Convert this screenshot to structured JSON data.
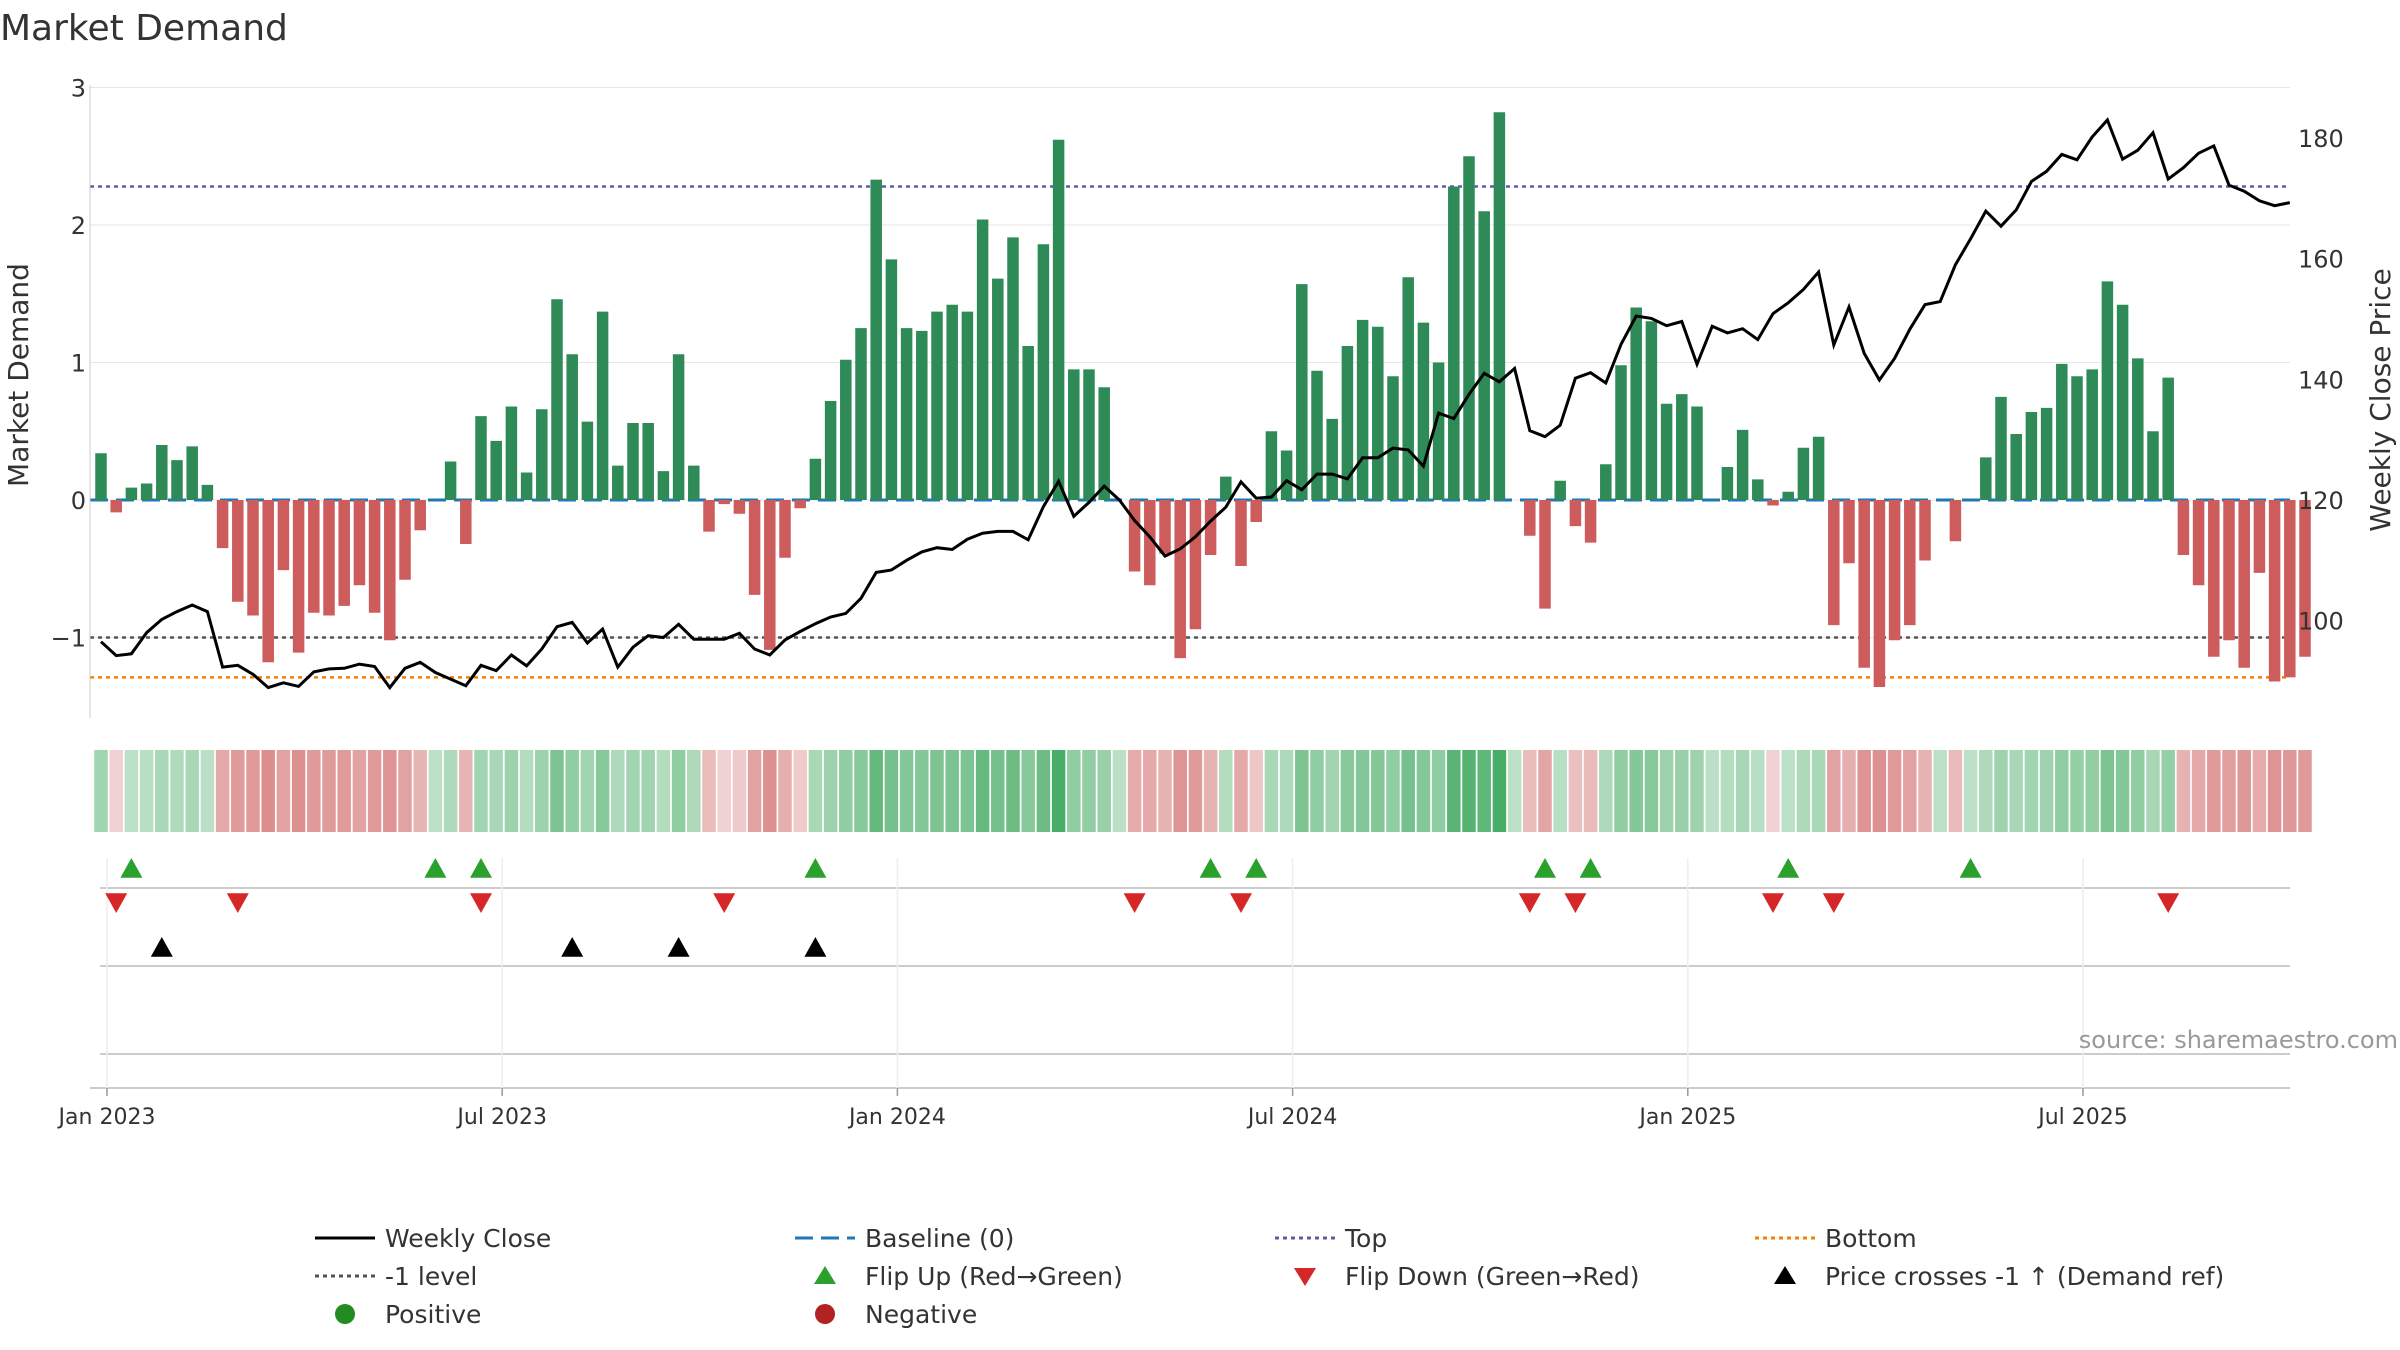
{
  "chart_data": {
    "type": "bar",
    "title": "Market Demand",
    "ylabel": "Market Demand",
    "y2label": "Weekly Close Price",
    "ylim": [
      -1.6,
      3.0
    ],
    "y2lim": [
      82.5,
      188.2
    ],
    "yticks": [
      3,
      2,
      1,
      0,
      -1
    ],
    "y2ticks": [
      180,
      160,
      140,
      120,
      100
    ],
    "source": "source: sharemaestro.com",
    "x_ticks": [
      {
        "week": 1,
        "label": "Jan 2023"
      },
      {
        "week": 27,
        "label": "Jul 2023"
      },
      {
        "week": 53,
        "label": "Jan 2024"
      },
      {
        "week": 79,
        "label": "Jul 2024"
      },
      {
        "week": 105,
        "label": "Jan 2025"
      },
      {
        "week": 131,
        "label": "Jul 2025"
      }
    ],
    "reference_lines": {
      "top": 2.28,
      "bottom": -1.29,
      "minus_one": -1,
      "baseline": 0
    },
    "colors": {
      "positive": "#2e8b57",
      "negative": "#cd5c5c",
      "price": "#000000",
      "baseline": "#1f77b4",
      "top": "#5b5ba8",
      "bottom": "#f08000",
      "minus_one": "#555555",
      "flip_up": "#2ca02c",
      "flip_down": "#d62728",
      "cross": "#000000",
      "dot_positive": "#228b22",
      "dot_negative": "#b22222"
    },
    "demand": [
      0.34,
      -0.09,
      0.09,
      0.12,
      0.4,
      0.29,
      0.39,
      0.11,
      -0.35,
      -0.74,
      -0.84,
      -1.18,
      -0.51,
      -1.11,
      -0.82,
      -0.84,
      -0.77,
      -0.62,
      -0.82,
      -1.02,
      -0.58,
      -0.22,
      0,
      0.28,
      -0.32,
      0.61,
      0.43,
      0.68,
      0.2,
      0.66,
      1.46,
      1.06,
      0.57,
      1.37,
      0.25,
      0.56,
      0.56,
      0.21,
      1.06,
      0.25,
      -0.23,
      -0.03,
      -0.1,
      -0.69,
      -1.09,
      -0.42,
      -0.06,
      0.3,
      0.72,
      1.02,
      1.25,
      2.33,
      1.75,
      1.25,
      1.23,
      1.37,
      1.42,
      1.37,
      2.04,
      1.61,
      1.91,
      1.12,
      1.86,
      2.62,
      0.95,
      0.95,
      0.82,
      0,
      -0.52,
      -0.62,
      -0.39,
      -1.15,
      -0.94,
      -0.4,
      0.17,
      -0.48,
      -0.16,
      0.5,
      0.36,
      1.57,
      0.94,
      0.59,
      1.12,
      1.31,
      1.26,
      0.9,
      1.62,
      1.29,
      1.0,
      2.28,
      2.5,
      2.1,
      2.82,
      0,
      -0.26,
      -0.79,
      0.14,
      -0.19,
      -0.31,
      0.26,
      0.98,
      1.4,
      1.3,
      0.7,
      0.77,
      0.68,
      0,
      0.24,
      0.51,
      0.15,
      -0.04,
      0.06,
      0.38,
      0.46,
      -0.91,
      -0.46,
      -1.22,
      -1.36,
      -1.02,
      -0.91,
      -0.44,
      0,
      -0.3,
      0,
      0.31,
      0.75,
      0.48,
      0.64,
      0.67,
      0.99,
      0.9,
      0.95,
      1.59,
      1.42,
      1.03,
      0.5,
      0.89,
      -0.4,
      -0.62,
      -1.14,
      -1.02,
      -1.22,
      -0.53,
      -1.32,
      -1.29,
      -1.14
    ],
    "price": [
      96.5,
      94.2,
      94.5,
      98.0,
      100.2,
      101.5,
      102.6,
      101.5,
      92.3,
      92.6,
      91.1,
      88.9,
      89.7,
      89.1,
      91.5,
      92.0,
      92.1,
      92.8,
      92.4,
      88.9,
      92.1,
      93.1,
      91.4,
      90.3,
      89.2,
      92.6,
      91.7,
      94.3,
      92.5,
      95.3,
      99.0,
      99.7,
      96.3,
      98.6,
      92.3,
      95.6,
      97.5,
      97.2,
      99.4,
      96.9,
      96.9,
      96.9,
      97.9,
      95.3,
      94.3,
      96.8,
      98.2,
      99.5,
      100.6,
      101.2,
      103.7,
      108.0,
      108.4,
      110.0,
      111.4,
      112.1,
      111.8,
      113.5,
      114.5,
      114.8,
      114.8,
      113.4,
      118.9,
      123.1,
      117.3,
      119.6,
      122.3,
      120.0,
      116.6,
      113.9,
      110.7,
      111.9,
      113.9,
      116.5,
      118.8,
      123.0,
      120.3,
      120.5,
      123.2,
      121.7,
      124.3,
      124.3,
      123.5,
      127.0,
      127.0,
      128.6,
      128.3,
      125.6,
      134.4,
      133.5,
      137.5,
      141.0,
      139.6,
      141.8,
      131.5,
      130.5,
      132.4,
      140.2,
      141.1,
      139.4,
      145.8,
      150.5,
      150.1,
      148.9,
      149.6,
      142.5,
      148.8,
      147.7,
      148.4,
      146.6,
      150.9,
      152.7,
      154.9,
      157.8,
      145.7,
      152.0,
      144.3,
      139.9,
      143.5,
      148.3,
      152.4,
      152.9,
      159.0,
      163.3,
      167.9,
      165.4,
      168.1,
      172.8,
      174.5,
      177.3,
      176.4,
      180.2,
      183.0,
      176.5,
      178.0,
      180.9,
      173.2,
      175.1,
      177.5,
      178.7,
      172.2,
      171.2,
      169.6,
      168.8,
      169.3
    ],
    "heat_intensity": [
      0.35,
      0.15,
      0.2,
      0.22,
      0.3,
      0.27,
      0.3,
      0.2,
      0.45,
      0.55,
      0.55,
      0.65,
      0.5,
      0.62,
      0.55,
      0.55,
      0.55,
      0.5,
      0.55,
      0.6,
      0.5,
      0.35,
      0.2,
      0.28,
      0.35,
      0.35,
      0.32,
      0.38,
      0.25,
      0.38,
      0.55,
      0.45,
      0.35,
      0.5,
      0.28,
      0.35,
      0.35,
      0.25,
      0.45,
      0.28,
      0.3,
      0.15,
      0.2,
      0.5,
      0.62,
      0.4,
      0.2,
      0.3,
      0.38,
      0.45,
      0.5,
      0.7,
      0.6,
      0.52,
      0.52,
      0.55,
      0.56,
      0.55,
      0.68,
      0.6,
      0.65,
      0.5,
      0.65,
      0.85,
      0.45,
      0.45,
      0.4,
      0.2,
      0.42,
      0.45,
      0.38,
      0.6,
      0.55,
      0.38,
      0.25,
      0.45,
      0.22,
      0.3,
      0.28,
      0.55,
      0.45,
      0.35,
      0.5,
      0.52,
      0.52,
      0.45,
      0.6,
      0.52,
      0.45,
      0.75,
      0.78,
      0.72,
      0.85,
      0.2,
      0.3,
      0.48,
      0.22,
      0.28,
      0.32,
      0.28,
      0.45,
      0.52,
      0.5,
      0.38,
      0.4,
      0.38,
      0.2,
      0.25,
      0.32,
      0.22,
      0.15,
      0.2,
      0.28,
      0.3,
      0.5,
      0.4,
      0.6,
      0.62,
      0.55,
      0.5,
      0.38,
      0.2,
      0.32,
      0.2,
      0.28,
      0.38,
      0.32,
      0.35,
      0.36,
      0.45,
      0.42,
      0.44,
      0.55,
      0.52,
      0.45,
      0.32,
      0.42,
      0.38,
      0.45,
      0.55,
      0.52,
      0.58,
      0.42,
      0.6,
      0.58,
      0.55
    ],
    "flip_up_weeks": [
      3,
      23,
      26,
      48,
      74,
      77,
      96,
      99,
      112,
      124
    ],
    "flip_down_weeks": [
      2,
      10,
      26,
      42,
      69,
      76,
      95,
      98,
      111,
      115,
      137
    ],
    "price_cross_weeks": [
      5,
      32,
      39,
      48
    ],
    "legend": [
      {
        "key": "weekly_close",
        "label": "Weekly Close"
      },
      {
        "key": "baseline",
        "label": "Baseline (0)"
      },
      {
        "key": "top",
        "label": "Top"
      },
      {
        "key": "bottom",
        "label": "Bottom"
      },
      {
        "key": "minus_one",
        "label": "-1 level"
      },
      {
        "key": "flip_up",
        "label": "Flip Up (Red→Green)"
      },
      {
        "key": "flip_down",
        "label": "Flip Down (Green→Red)"
      },
      {
        "key": "price_cross",
        "label": "Price crosses -1 ↑ (Demand ref)"
      },
      {
        "key": "positive",
        "label": "Positive"
      },
      {
        "key": "negative",
        "label": "Negative"
      }
    ]
  }
}
